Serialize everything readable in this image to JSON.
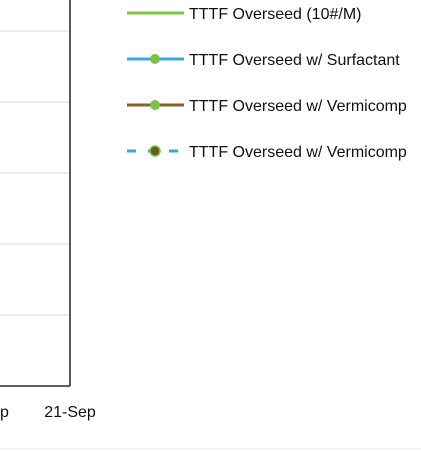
{
  "chart_data": {
    "type": "line",
    "x_tick_labels": [
      "p",
      "21-Sep"
    ],
    "grid": true,
    "legend_position": "right",
    "series": [
      {
        "name": "TTTF Overseed (10#/M)",
        "color": "#7dc242",
        "line_style": "solid",
        "marker": "none",
        "marker_color": "#7dc242"
      },
      {
        "name": "TTTF Overseed w/ Surfactant",
        "color": "#35a9e0",
        "line_style": "solid",
        "marker": "circle",
        "marker_color": "#7dc242"
      },
      {
        "name": "TTTF Overseed w/ Vermicomp",
        "color": "#8b5e2a",
        "line_style": "solid",
        "marker": "circle",
        "marker_color": "#7dc242"
      },
      {
        "name": "TTTF Overseed w/ Vermicomp",
        "color": "#35a9e0",
        "line_style": "dashed",
        "marker": "circle",
        "marker_color": "#6b5a1e"
      }
    ]
  }
}
